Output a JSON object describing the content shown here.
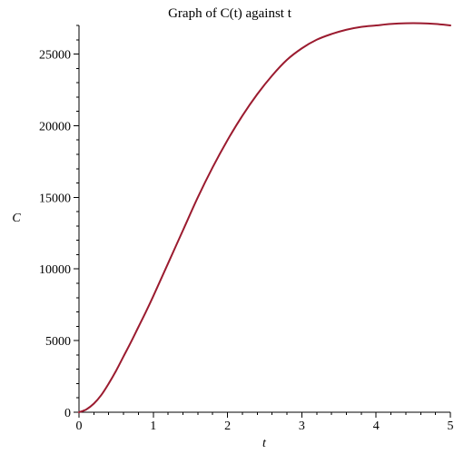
{
  "chart_data": {
    "type": "line",
    "title": "Graph of C(t) against t",
    "xlabel": "t",
    "ylabel": "C",
    "xlim": [
      0,
      5
    ],
    "ylim": [
      0,
      27000
    ],
    "x_ticks": [
      0,
      1,
      2,
      3,
      4,
      5
    ],
    "x_tick_labels": [
      "0",
      "1",
      "2",
      "3",
      "4",
      "5"
    ],
    "y_ticks": [
      0,
      5000,
      10000,
      15000,
      20000,
      25000
    ],
    "y_tick_labels": [
      "0",
      "5000",
      "10000",
      "15000",
      "20000",
      "25000"
    ],
    "grid": false,
    "legend": "none",
    "series": [
      {
        "color": "#9b1b2f",
        "x": [
          0,
          0.1,
          0.2,
          0.3,
          0.4,
          0.5,
          0.6,
          0.7,
          0.8,
          0.9,
          1.0,
          1.2,
          1.4,
          1.6,
          1.8,
          2.0,
          2.2,
          2.4,
          2.6,
          2.8,
          3.0,
          3.2,
          3.4,
          3.6,
          3.8,
          4.0,
          4.2,
          4.4,
          4.6,
          4.8,
          5.0
        ],
        "y": [
          0,
          200,
          600,
          1200,
          2000,
          2900,
          3900,
          4900,
          5950,
          7000,
          8100,
          10400,
          12700,
          15000,
          17100,
          19000,
          20700,
          22200,
          23500,
          24600,
          25400,
          26000,
          26400,
          26700,
          26900,
          27000,
          27100,
          27150,
          27150,
          27100,
          27000
        ]
      }
    ]
  }
}
